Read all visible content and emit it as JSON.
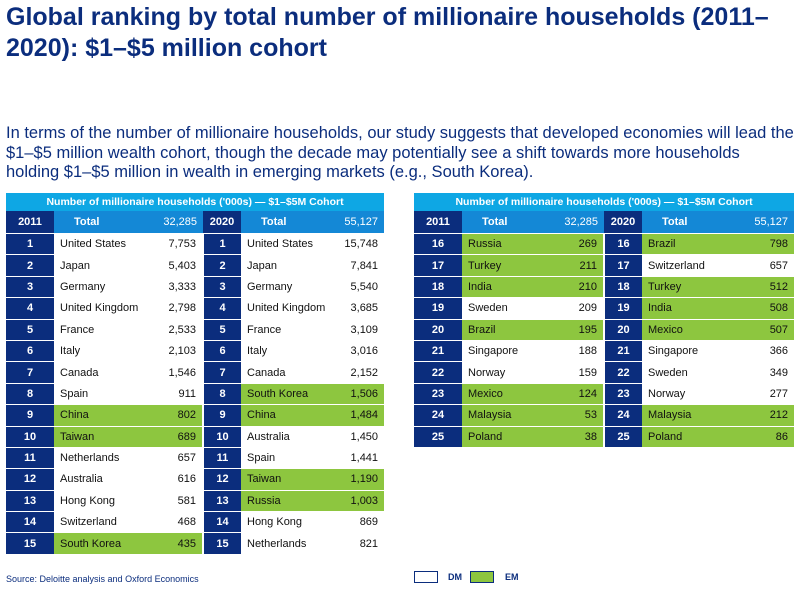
{
  "title": "Global ranking by total number of millionaire households (2011–2020): $1–$5 million cohort",
  "intro": "In terms of the number of millionaire households, our study suggests that developed economies will lead the $1–$5 million wealth cohort, though the decade may potentially see a shift towards more households holding $1–$5 million in wealth in emerging markets (e.g., South Korea).",
  "source": "Source: Deloitte analysis and Oxford Economics",
  "legend": {
    "dm": "DM",
    "em": "EM",
    "dm_color": "#ffffff",
    "em_color": "#8dc63f"
  },
  "chart_data": {
    "type": "table",
    "caption": "Number of millionaire households ('000s) — $1–$5M Cohort",
    "columns": {
      "year_2011": "2011",
      "year_2020": "2020",
      "total_label": "Total",
      "total_2011": "32,285",
      "total_2020": "55,127"
    },
    "tables": [
      {
        "rows": [
          {
            "rank": "1",
            "c2011": "United States",
            "v2011": "7,753",
            "em2011": false,
            "c2020": "United States",
            "v2020": "15,748",
            "em2020": false
          },
          {
            "rank": "2",
            "c2011": "Japan",
            "v2011": "5,403",
            "em2011": false,
            "c2020": "Japan",
            "v2020": "7,841",
            "em2020": false
          },
          {
            "rank": "3",
            "c2011": "Germany",
            "v2011": "3,333",
            "em2011": false,
            "c2020": "Germany",
            "v2020": "5,540",
            "em2020": false
          },
          {
            "rank": "4",
            "c2011": "United Kingdom",
            "v2011": "2,798",
            "em2011": false,
            "c2020": "United Kingdom",
            "v2020": "3,685",
            "em2020": false
          },
          {
            "rank": "5",
            "c2011": "France",
            "v2011": "2,533",
            "em2011": false,
            "c2020": "France",
            "v2020": "3,109",
            "em2020": false
          },
          {
            "rank": "6",
            "c2011": "Italy",
            "v2011": "2,103",
            "em2011": false,
            "c2020": "Italy",
            "v2020": "3,016",
            "em2020": false
          },
          {
            "rank": "7",
            "c2011": "Canada",
            "v2011": "1,546",
            "em2011": false,
            "c2020": "Canada",
            "v2020": "2,152",
            "em2020": false
          },
          {
            "rank": "8",
            "c2011": "Spain",
            "v2011": "911",
            "em2011": false,
            "c2020": "South Korea",
            "v2020": "1,506",
            "em2020": true
          },
          {
            "rank": "9",
            "c2011": "China",
            "v2011": "802",
            "em2011": true,
            "c2020": "China",
            "v2020": "1,484",
            "em2020": true
          },
          {
            "rank": "10",
            "c2011": "Taiwan",
            "v2011": "689",
            "em2011": true,
            "c2020": "Australia",
            "v2020": "1,450",
            "em2020": false
          },
          {
            "rank": "11",
            "c2011": "Netherlands",
            "v2011": "657",
            "em2011": false,
            "c2020": "Spain",
            "v2020": "1,441",
            "em2020": false
          },
          {
            "rank": "12",
            "c2011": "Australia",
            "v2011": "616",
            "em2011": false,
            "c2020": "Taiwan",
            "v2020": "1,190",
            "em2020": true
          },
          {
            "rank": "13",
            "c2011": "Hong Kong",
            "v2011": "581",
            "em2011": false,
            "c2020": "Russia",
            "v2020": "1,003",
            "em2020": true
          },
          {
            "rank": "14",
            "c2011": "Switzerland",
            "v2011": "468",
            "em2011": false,
            "c2020": "Hong Kong",
            "v2020": "869",
            "em2020": false
          },
          {
            "rank": "15",
            "c2011": "South Korea",
            "v2011": "435",
            "em2011": true,
            "c2020": "Netherlands",
            "v2020": "821",
            "em2020": false
          }
        ]
      },
      {
        "rows": [
          {
            "rank": "16",
            "c2011": "Russia",
            "v2011": "269",
            "em2011": true,
            "c2020": "Brazil",
            "v2020": "798",
            "em2020": true
          },
          {
            "rank": "17",
            "c2011": "Turkey",
            "v2011": "211",
            "em2011": true,
            "c2020": "Switzerland",
            "v2020": "657",
            "em2020": false
          },
          {
            "rank": "18",
            "c2011": "India",
            "v2011": "210",
            "em2011": true,
            "c2020": "Turkey",
            "v2020": "512",
            "em2020": true
          },
          {
            "rank": "19",
            "c2011": "Sweden",
            "v2011": "209",
            "em2011": false,
            "c2020": "India",
            "v2020": "508",
            "em2020": true
          },
          {
            "rank": "20",
            "c2011": "Brazil",
            "v2011": "195",
            "em2011": true,
            "c2020": "Mexico",
            "v2020": "507",
            "em2020": true
          },
          {
            "rank": "21",
            "c2011": "Singapore",
            "v2011": "188",
            "em2011": false,
            "c2020": "Singapore",
            "v2020": "366",
            "em2020": false
          },
          {
            "rank": "22",
            "c2011": "Norway",
            "v2011": "159",
            "em2011": false,
            "c2020": "Sweden",
            "v2020": "349",
            "em2020": false
          },
          {
            "rank": "23",
            "c2011": "Mexico",
            "v2011": "124",
            "em2011": true,
            "c2020": "Norway",
            "v2020": "277",
            "em2020": false
          },
          {
            "rank": "24",
            "c2011": "Malaysia",
            "v2011": "53",
            "em2011": true,
            "c2020": "Malaysia",
            "v2020": "212",
            "em2020": true
          },
          {
            "rank": "25",
            "c2011": "Poland",
            "v2011": "38",
            "em2011": true,
            "c2020": "Poland",
            "v2020": "86",
            "em2020": true
          }
        ]
      }
    ]
  }
}
